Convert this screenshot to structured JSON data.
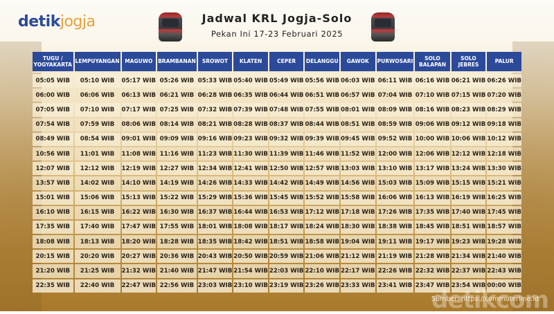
{
  "logo": {
    "part1": "detik",
    "part2": "jogja"
  },
  "title": "Jadwal KRL Jogja-Solo",
  "subtitle": "Pekan Ini 17-23 Februari 2025",
  "columns": [
    "TUGU / YOGYAKARTA",
    "LEMPUYANGAN",
    "MAGUWO",
    "BRAMBANAN",
    "SROWOT",
    "KLATEN",
    "CEPER",
    "DELANGGU",
    "GAWOK",
    "PURWOSARI",
    "SOLO BALAPAN",
    "SOLO JEBRES",
    "PALUR"
  ],
  "rows": [
    [
      "05:05 WIB",
      "05:10 WIB",
      "05:17 WIB",
      "05:26 WIB",
      "05:33 WIB",
      "05:40 WIB",
      "05:49 WIB",
      "05:56 WIB",
      "06:03 WIB",
      "06:11 WIB",
      "06:16 WIB",
      "06:21 WIB",
      "06:26 WIB"
    ],
    [
      "06:00 WIB",
      "06:06 WIB",
      "06:13 WIB",
      "06:21 WIB",
      "06:28 WIB",
      "06:35 WIB",
      "06:44 WIB",
      "06:51 WIB",
      "06:57 WIB",
      "07:04 WIB",
      "07:10 WIB",
      "07:15 WIB",
      "07:20 WIB"
    ],
    [
      "07:05 WIB",
      "07:10 WIB",
      "07:17 WIB",
      "07:25 WIB",
      "07:32 WIB",
      "07:39 WIB",
      "07:48 WIB",
      "07:55 WIB",
      "08:01 WIB",
      "08:09 WIB",
      "08:16 WIB",
      "08:23 WIB",
      "08:29 WIB"
    ],
    [
      "07:54 WIB",
      "07:59 WIB",
      "08:06 WIB",
      "08:14 WIB",
      "08:21 WIB",
      "08:28 WIB",
      "08:37 WIB",
      "08:44 WIB",
      "08:51 WIB",
      "08:59 WIB",
      "09:06 WIB",
      "09:12 WIB",
      "09:18 WIB"
    ],
    [
      "08:49 WIB",
      "08:54 WIB",
      "09:01 WIB",
      "09:09 WIB",
      "09:16 WIB",
      "09:23 WIB",
      "09:32 WIB",
      "09:39 WIB",
      "09:45 WIB",
      "09:52 WIB",
      "10:00 WIB",
      "10:06 WIB",
      "10:12 WIB"
    ],
    [
      "10:56 WIB",
      "11:01 WIB",
      "11:08 WIB",
      "11:16 WIB",
      "11:23 WIB",
      "11:30 WIB",
      "11:39 WIB",
      "11:46 WIB",
      "11:52 WIB",
      "12:00 WIB",
      "12:06 WIB",
      "12:12 WIB",
      "12:18 WIB"
    ],
    [
      "12:07 WIB",
      "12:12 WIB",
      "12:19 WIB",
      "12:27 WIB",
      "12:34 WIB",
      "12:41 WIB",
      "12:50 WIB",
      "12:57 WIB",
      "13:03 WIB",
      "13:10 WIB",
      "13:17 WIB",
      "13:24 WIB",
      "13:30 WIB"
    ],
    [
      "13:57 WIB",
      "14:02 WIB",
      "14:10 WIB",
      "14:19 WIB",
      "14:26 WIB",
      "14:33 WIB",
      "14:42 WIB",
      "14:49 WIB",
      "14:56 WIB",
      "15:03 WIB",
      "15:09 WIB",
      "15:15 WIB",
      "15:21 WIB"
    ],
    [
      "15:01 WIB",
      "15:06 WIB",
      "15:13 WIB",
      "15:22 WIB",
      "15:29 WIB",
      "15:36 WIB",
      "15:45 WIB",
      "15:52 WIB",
      "15:58 WIB",
      "16:06 WIB",
      "16:13 WIB",
      "16:19 WIB",
      "16:25 WIB"
    ],
    [
      "16:10 WIB",
      "16:15 WIB",
      "16:22 WIB",
      "16:30 WIB",
      "16:37 WIB",
      "16:44 WIB",
      "16:53 WIB",
      "17:12 WIB",
      "17:18 WIB",
      "17:26 WIB",
      "17:35 WIB",
      "17:40 WIB",
      "17:45 WIB"
    ],
    [
      "17:35 WIB",
      "17:40 WIB",
      "17:47 WIB",
      "17:55 WIB",
      "18:01 WIB",
      "18:08 WIB",
      "18:17 WIB",
      "18:24 WIB",
      "18:30 WIB",
      "18:38 WIB",
      "18:45 WIB",
      "18:51 WIB",
      "18:57 WIB"
    ],
    [
      "18:08 WIB",
      "18:13 WIB",
      "18:20 WIB",
      "18:28 WIB",
      "18:35 WIB",
      "18:42 WIB",
      "18:51 WIB",
      "18:58 WIB",
      "19:04 WIB",
      "19:11 WIB",
      "19:17 WIB",
      "19:23 WIB",
      "19:28 WIB"
    ],
    [
      "20:15 WIB",
      "20:20 WIB",
      "20:27 WIB",
      "20:36 WIB",
      "20:43 WIB",
      "20:50 WIB",
      "20:59 WIB",
      "21:06 WIB",
      "21:12 WIB",
      "21:19 WIB",
      "21:28 WIB",
      "21:34 WIB",
      "21:40 WIB"
    ],
    [
      "21:20 WIB",
      "21:25 WIB",
      "21:32 WIB",
      "21:40 WIB",
      "21:47 WIB",
      "21:54 WIB",
      "22:03 WIB",
      "22:10 WIB",
      "22:17 WIB",
      "22:26 WIB",
      "22:32 WIB",
      "22:37 WIB",
      "22:43 WIB"
    ],
    [
      "22:35 WIB",
      "22:40 WIB",
      "22:47 WIB",
      "22:56 WIB",
      "23:03 WIB",
      "23:10 WIB",
      "23:19 WIB",
      "23:26 WIB",
      "23:33 WIB",
      "23:41 WIB",
      "23:47 WIB",
      "23:54 WIB",
      "00:00 WIB"
    ]
  ],
  "source": "Sumber: https://commuterline.id",
  "watermark": "detikcom"
}
